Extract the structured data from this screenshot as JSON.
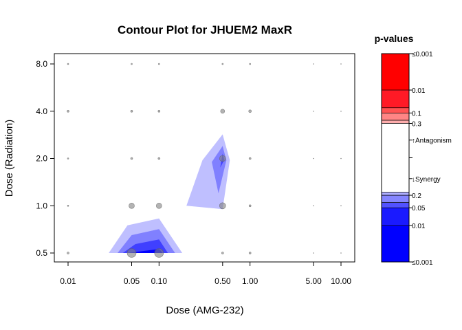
{
  "chart_data": {
    "type": "contour",
    "title": "Contour Plot for JHUEM2 MaxR",
    "xlabel": "Dose (AMG-232)",
    "ylabel": "Dose (Radiation)",
    "x_scale": "log",
    "y_scale": "log",
    "x_ticks": [
      0.01,
      0.05,
      0.1,
      0.5,
      1.0,
      5.0,
      10.0
    ],
    "x_tick_labels": [
      "0.01",
      "0.05",
      "0.10",
      "0.50",
      "1.00",
      "5.00",
      "10.00"
    ],
    "y_ticks": [
      0.5,
      1.0,
      2.0,
      4.0,
      8.0
    ],
    "y_tick_labels": [
      "0.5",
      "1.0",
      "2.0",
      "4.0",
      "8.0"
    ],
    "points": [
      {
        "x": 0.01,
        "y": 8.0,
        "size": 1
      },
      {
        "x": 0.05,
        "y": 8.0,
        "size": 1
      },
      {
        "x": 0.1,
        "y": 8.0,
        "size": 1
      },
      {
        "x": 0.5,
        "y": 8.0,
        "size": 1
      },
      {
        "x": 1.0,
        "y": 8.0,
        "size": 1
      },
      {
        "x": 5.0,
        "y": 8.0,
        "size": 0.5
      },
      {
        "x": 10.0,
        "y": 8.0,
        "size": 0.5
      },
      {
        "x": 0.01,
        "y": 4.0,
        "size": 1.5
      },
      {
        "x": 0.05,
        "y": 4.0,
        "size": 1.5
      },
      {
        "x": 0.1,
        "y": 4.0,
        "size": 1.5
      },
      {
        "x": 0.5,
        "y": 4.0,
        "size": 3
      },
      {
        "x": 1.0,
        "y": 4.0,
        "size": 2
      },
      {
        "x": 5.0,
        "y": 4.0,
        "size": 0.5
      },
      {
        "x": 10.0,
        "y": 4.0,
        "size": 0.5
      },
      {
        "x": 0.01,
        "y": 2.0,
        "size": 1
      },
      {
        "x": 0.05,
        "y": 2.0,
        "size": 1.5
      },
      {
        "x": 0.1,
        "y": 2.0,
        "size": 1.5
      },
      {
        "x": 0.5,
        "y": 2.0,
        "size": 4.5
      },
      {
        "x": 1.0,
        "y": 2.0,
        "size": 1.5
      },
      {
        "x": 5.0,
        "y": 2.0,
        "size": 0.5
      },
      {
        "x": 10.0,
        "y": 2.0,
        "size": 0.5
      },
      {
        "x": 0.01,
        "y": 1.0,
        "size": 1
      },
      {
        "x": 0.05,
        "y": 1.0,
        "size": 4
      },
      {
        "x": 0.1,
        "y": 1.0,
        "size": 4
      },
      {
        "x": 0.5,
        "y": 1.0,
        "size": 4.5
      },
      {
        "x": 1.0,
        "y": 1.0,
        "size": 1.5
      },
      {
        "x": 5.0,
        "y": 1.0,
        "size": 0.5
      },
      {
        "x": 10.0,
        "y": 1.0,
        "size": 0.5
      },
      {
        "x": 0.01,
        "y": 0.5,
        "size": 1.5
      },
      {
        "x": 0.05,
        "y": 0.5,
        "size": 6.5
      },
      {
        "x": 0.1,
        "y": 0.5,
        "size": 6.5
      },
      {
        "x": 0.5,
        "y": 0.5,
        "size": 1.5
      },
      {
        "x": 1.0,
        "y": 0.5,
        "size": 1.5
      },
      {
        "x": 5.0,
        "y": 0.5,
        "size": 0.5
      },
      {
        "x": 10.0,
        "y": 0.5,
        "size": 0.5
      }
    ],
    "regions": [
      {
        "level": 0.2,
        "color": "#BFBFFF",
        "polygon": [
          [
            0.028,
            0.5
          ],
          [
            0.045,
            0.75
          ],
          [
            0.1,
            0.83
          ],
          [
            0.18,
            0.5
          ]
        ]
      },
      {
        "level": 0.05,
        "color": "#8080FF",
        "polygon": [
          [
            0.035,
            0.5
          ],
          [
            0.05,
            0.65
          ],
          [
            0.1,
            0.71
          ],
          [
            0.15,
            0.5
          ]
        ]
      },
      {
        "level": 0.01,
        "color": "#4040FF",
        "polygon": [
          [
            0.04,
            0.5
          ],
          [
            0.055,
            0.57
          ],
          [
            0.1,
            0.61
          ],
          [
            0.125,
            0.5
          ]
        ]
      },
      {
        "level": 0.001,
        "color": "#0000FF",
        "polygon": [
          [
            0.045,
            0.5
          ],
          [
            0.1,
            0.53
          ],
          [
            0.11,
            0.5
          ]
        ]
      },
      {
        "level": 0.2,
        "color": "#BFBFFF",
        "polygon": [
          [
            0.2,
            1.0
          ],
          [
            0.3,
            1.95
          ],
          [
            0.5,
            2.85
          ],
          [
            0.6,
            1.95
          ],
          [
            0.5,
            0.95
          ]
        ]
      },
      {
        "level": 0.05,
        "color": "#8080FF",
        "polygon": [
          [
            0.45,
            1.2
          ],
          [
            0.38,
            1.9
          ],
          [
            0.5,
            2.4
          ],
          [
            0.55,
            1.95
          ]
        ]
      },
      {
        "level": 0.01,
        "color": "#4040FF",
        "polygon": [
          [
            0.47,
            1.75
          ],
          [
            0.5,
            2.15
          ],
          [
            0.52,
            1.95
          ]
        ]
      }
    ],
    "legend": {
      "title": "p-values",
      "bands": [
        {
          "from": 0.0,
          "to": 0.175,
          "color": "#0000FF"
        },
        {
          "from": 0.175,
          "to": 0.26,
          "color": "#1A1AFF"
        },
        {
          "from": 0.26,
          "to": 0.285,
          "color": "#5252FF"
        },
        {
          "from": 0.285,
          "to": 0.32,
          "color": "#8585FF"
        },
        {
          "from": 0.32,
          "to": 0.335,
          "color": "#ADADFF"
        },
        {
          "from": 0.335,
          "to": 0.665,
          "color": "#FFFFFF"
        },
        {
          "from": 0.665,
          "to": 0.68,
          "color": "#FFADAD"
        },
        {
          "from": 0.68,
          "to": 0.715,
          "color": "#FF8585"
        },
        {
          "from": 0.715,
          "to": 0.74,
          "color": "#FF5252"
        },
        {
          "from": 0.74,
          "to": 0.825,
          "color": "#FF1A26"
        },
        {
          "from": 0.825,
          "to": 1.0,
          "color": "#FF0000"
        }
      ],
      "tick_labels": [
        {
          "pos": 0.0,
          "text": "≤0.001"
        },
        {
          "pos": 0.175,
          "text": "0.01"
        },
        {
          "pos": 0.26,
          "text": "0.05"
        },
        {
          "pos": 0.32,
          "text": "0.2"
        },
        {
          "pos": 0.4,
          "text": "↓Synergy"
        },
        {
          "pos": 0.5,
          "text": ""
        },
        {
          "pos": 0.585,
          "text": "↑Antagonism"
        },
        {
          "pos": 0.665,
          "text": "0.3"
        },
        {
          "pos": 0.715,
          "text": "0.1"
        },
        {
          "pos": 0.825,
          "text": "0.01"
        },
        {
          "pos": 1.0,
          "text": "≤0.001"
        }
      ]
    }
  }
}
